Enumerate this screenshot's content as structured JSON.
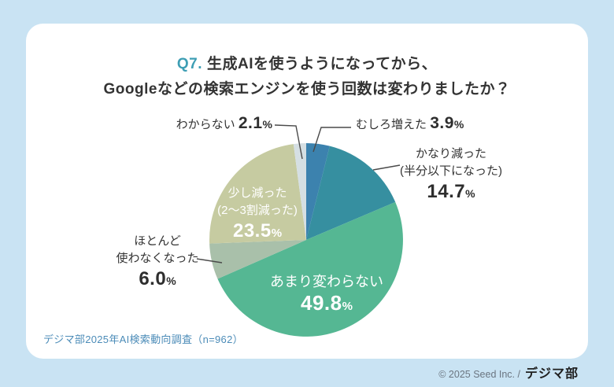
{
  "symbols": {
    "percent": "%"
  },
  "colors": {
    "background": "#c9e3f3",
    "card": "#ffffff",
    "accent_teal": "#3e9eb4",
    "note_blue": "#4c8cb8"
  },
  "title": {
    "prefix": "Q7.",
    "line1": "生成AIを使うようになってから、",
    "line2": "Googleなどの検索エンジンを使う回数は変わりましたか？"
  },
  "chart_data": {
    "type": "pie",
    "title": "Q7. 生成AIを使うようになってから、Googleなどの検索エンジンを使う回数は変わりましたか？",
    "unit": "%",
    "start_angle_deg": 0,
    "direction": "clockwise",
    "segments": [
      {
        "label": "むしろ増えた",
        "value": 3.9,
        "color": "#3c82ae"
      },
      {
        "label": "かなり減った（半分以下になった）",
        "value": 14.7,
        "color": "#368fa0"
      },
      {
        "label": "あまり変わらない",
        "value": 49.8,
        "color": "#55b793"
      },
      {
        "label": "ほとんど使わなくなった",
        "value": 6.0,
        "color": "#a9c0aa"
      },
      {
        "label": "少し減った（2〜3割減った）",
        "value": 23.5,
        "color": "#c6cba1"
      },
      {
        "label": "わからない",
        "value": 2.1,
        "color": "#d5dfe3"
      }
    ]
  },
  "callouts": {
    "unknown": {
      "label": "わからない",
      "value": "2.1"
    },
    "increased": {
      "label": "むしろ増えた",
      "value": "3.9"
    },
    "halved": {
      "line1": "かなり減った",
      "line2": "(半分以下になった)",
      "value": "14.7"
    },
    "stopped": {
      "line1": "ほとんど",
      "line2": "使わなくなった",
      "value": "6.0"
    },
    "slightly": {
      "line1": "少し減った",
      "line2": "(2〜3割減った)",
      "value": "23.5"
    },
    "unchanged": {
      "label": "あまり変わらない",
      "value": "49.8"
    }
  },
  "footer": {
    "source_note": "デジマ部2025年AI検索動向調査（n=962）"
  },
  "copyright": {
    "text": "© 2025 Seed Inc. /",
    "brand": "デジマ部"
  }
}
